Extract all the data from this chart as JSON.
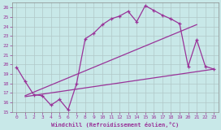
{
  "xlabel": "Windchill (Refroidissement éolien,°C)",
  "line_color": "#993399",
  "bg_color": "#c8e8e8",
  "grid_color": "#b0c8c8",
  "xlim": [
    -0.5,
    23.5
  ],
  "ylim": [
    15,
    26.5
  ],
  "yticks": [
    15,
    16,
    17,
    18,
    19,
    20,
    21,
    22,
    23,
    24,
    25,
    26
  ],
  "xticks": [
    0,
    1,
    2,
    3,
    4,
    5,
    6,
    7,
    8,
    9,
    10,
    11,
    12,
    13,
    14,
    15,
    16,
    17,
    18,
    19,
    20,
    21,
    22,
    23
  ],
  "main_x": [
    0,
    1,
    2,
    3,
    4,
    5,
    6,
    7,
    8,
    9,
    10,
    11,
    12,
    13,
    14,
    15,
    16,
    17,
    18,
    19,
    20,
    21,
    22,
    23
  ],
  "main_y": [
    19.7,
    18.2,
    16.8,
    16.7,
    15.7,
    16.3,
    15.2,
    18.0,
    22.7,
    23.3,
    24.2,
    24.8,
    25.1,
    25.6,
    24.5,
    26.2,
    25.7,
    25.2,
    24.8,
    24.3,
    19.8,
    22.6,
    19.8,
    19.5
  ],
  "trend1_x": [
    1,
    23
  ],
  "trend1_y": [
    16.6,
    19.5
  ],
  "trend2_x": [
    1,
    21
  ],
  "trend2_y": [
    16.7,
    24.2
  ]
}
